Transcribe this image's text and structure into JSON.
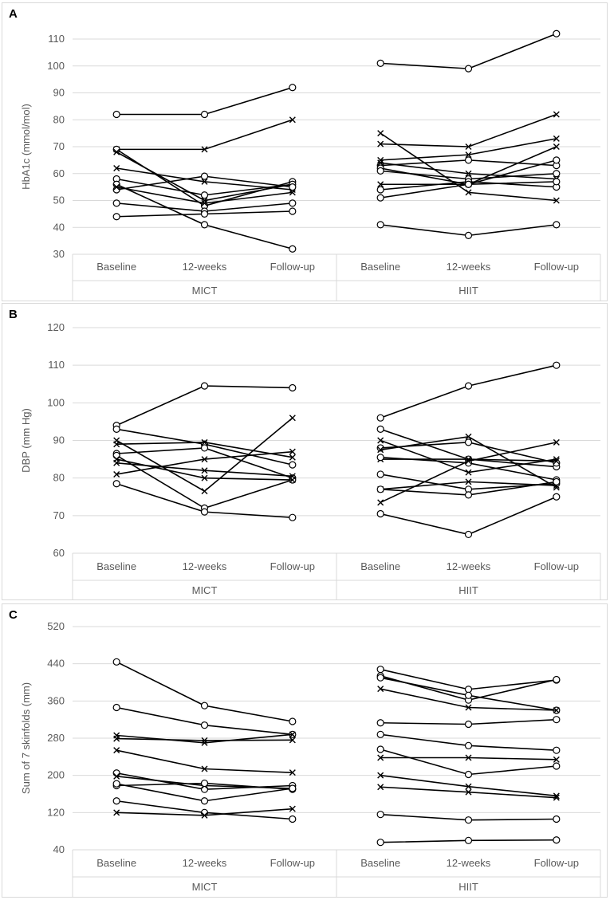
{
  "chart_data": [
    {
      "type": "line",
      "panel_label": "A",
      "ylabel": "HbA1c (mmol/mol)",
      "ylim": [
        30,
        110
      ],
      "yticks": [
        30,
        40,
        50,
        60,
        70,
        80,
        90,
        100,
        110
      ],
      "tick_labels": [
        "30",
        "40",
        "50",
        "60",
        "70",
        "80",
        "90",
        "100",
        "110"
      ],
      "categories": [
        "Baseline",
        "12-weeks",
        "Follow-up"
      ],
      "groups": [
        {
          "name": "MICT",
          "series": [
            {
              "marker": "o",
              "values": [
                82,
                82,
                92
              ]
            },
            {
              "marker": "x",
              "values": [
                69,
                69,
                80
              ]
            },
            {
              "marker": "o",
              "values": [
                69,
                48,
                57
              ]
            },
            {
              "marker": "x",
              "values": [
                68,
                50,
                56
              ]
            },
            {
              "marker": "x",
              "values": [
                62,
                57,
                54
              ]
            },
            {
              "marker": "o",
              "values": [
                58,
                52,
                56
              ]
            },
            {
              "marker": "o",
              "values": [
                56,
                41,
                32
              ]
            },
            {
              "marker": "o",
              "values": [
                54,
                59,
                55
              ]
            },
            {
              "marker": "x",
              "values": [
                55,
                49,
                53
              ]
            },
            {
              "marker": "o",
              "values": [
                49,
                46,
                49
              ]
            },
            {
              "marker": "o",
              "values": [
                44,
                45,
                46
              ]
            }
          ]
        },
        {
          "name": "HIIT",
          "series": [
            {
              "marker": "o",
              "values": [
                101,
                99,
                112
              ]
            },
            {
              "marker": "x",
              "values": [
                75,
                53,
                50
              ]
            },
            {
              "marker": "x",
              "values": [
                71,
                70,
                82
              ]
            },
            {
              "marker": "x",
              "values": [
                65,
                67,
                73
              ]
            },
            {
              "marker": "o",
              "values": [
                63,
                65,
                63
              ]
            },
            {
              "marker": "o",
              "values": [
                62,
                56,
                65
              ]
            },
            {
              "marker": "o",
              "values": [
                61,
                58,
                60
              ]
            },
            {
              "marker": "x",
              "values": [
                64,
                60,
                58
              ]
            },
            {
              "marker": "o",
              "values": [
                54,
                57,
                55
              ]
            },
            {
              "marker": "x",
              "values": [
                56,
                56,
                70
              ]
            },
            {
              "marker": "o",
              "values": [
                51,
                56,
                57
              ]
            },
            {
              "marker": "o",
              "values": [
                41,
                37,
                41
              ]
            }
          ]
        }
      ]
    },
    {
      "type": "line",
      "panel_label": "B",
      "ylabel": "DBP (mm Hg)",
      "ylim": [
        60,
        120
      ],
      "yticks": [
        60,
        70,
        80,
        90,
        100,
        110,
        120
      ],
      "tick_labels": [
        "60",
        "70",
        "80",
        "90",
        "100",
        "110",
        "120"
      ],
      "categories": [
        "Baseline",
        "12-weeks",
        "Follow-up"
      ],
      "groups": [
        {
          "name": "MICT",
          "series": [
            {
              "marker": "o",
              "values": [
                94,
                104.5,
                104
              ]
            },
            {
              "marker": "o",
              "values": [
                93,
                89,
                83.5
              ]
            },
            {
              "marker": "x",
              "values": [
                90,
                76.5,
                96
              ]
            },
            {
              "marker": "x",
              "values": [
                89,
                89.5,
                85.5
              ]
            },
            {
              "marker": "o",
              "values": [
                86.5,
                88,
                80
              ]
            },
            {
              "marker": "o",
              "values": [
                86,
                72,
                79.5
              ]
            },
            {
              "marker": "x",
              "values": [
                85,
                80,
                79.5
              ]
            },
            {
              "marker": "x",
              "values": [
                84,
                82,
                80.5
              ]
            },
            {
              "marker": "x",
              "values": [
                81,
                85,
                87
              ]
            },
            {
              "marker": "o",
              "values": [
                78.5,
                71,
                69.5
              ]
            }
          ]
        },
        {
          "name": "HIIT",
          "series": [
            {
              "marker": "o",
              "values": [
                96,
                104.5,
                110
              ]
            },
            {
              "marker": "o",
              "values": [
                93,
                85,
                83
              ]
            },
            {
              "marker": "x",
              "values": [
                90,
                81.5,
                85
              ]
            },
            {
              "marker": "o",
              "values": [
                88,
                89.5,
                84
              ]
            },
            {
              "marker": "x",
              "values": [
                87.5,
                91,
                77.5
              ]
            },
            {
              "marker": "x",
              "values": [
                85,
                85,
                84.5
              ]
            },
            {
              "marker": "o",
              "values": [
                85.5,
                84,
                79.5
              ]
            },
            {
              "marker": "o",
              "values": [
                81,
                77,
                78.5
              ]
            },
            {
              "marker": "x",
              "values": [
                77,
                79,
                78
              ]
            },
            {
              "marker": "o",
              "values": [
                77,
                75.5,
                79
              ]
            },
            {
              "marker": "x",
              "values": [
                73.5,
                84.5,
                89.5
              ]
            },
            {
              "marker": "o",
              "values": [
                70.5,
                65,
                75
              ]
            }
          ]
        }
      ]
    },
    {
      "type": "line",
      "panel_label": "C",
      "ylabel": "Sum of 7 skinfolds (mm)",
      "ylim": [
        40,
        520
      ],
      "yticks": [
        40,
        120,
        200,
        280,
        360,
        440,
        520
      ],
      "tick_labels": [
        "40",
        "120",
        "200",
        "280",
        "360",
        "440",
        "520"
      ],
      "categories": [
        "Baseline",
        "12-weeks",
        "Follow-up"
      ],
      "groups": [
        {
          "name": "MICT",
          "series": [
            {
              "marker": "o",
              "values": [
                444,
                350,
                316
              ]
            },
            {
              "marker": "o",
              "values": [
                346,
                308,
                288
              ]
            },
            {
              "marker": "x",
              "values": [
                286,
                270,
                288
              ]
            },
            {
              "marker": "x",
              "values": [
                279,
                275,
                276
              ]
            },
            {
              "marker": "x",
              "values": [
                254,
                214,
                206
              ]
            },
            {
              "marker": "o",
              "values": [
                205,
                170,
                178
              ]
            },
            {
              "marker": "x",
              "values": [
                198,
                178,
                172
              ]
            },
            {
              "marker": "o",
              "values": [
                178,
                183,
                170
              ]
            },
            {
              "marker": "o",
              "values": [
                182,
                145,
                172
              ]
            },
            {
              "marker": "o",
              "values": [
                145,
                120,
                106
              ]
            },
            {
              "marker": "x",
              "values": [
                120,
                114,
                128
              ]
            }
          ]
        },
        {
          "name": "HIIT",
          "series": [
            {
              "marker": "o",
              "values": [
                428,
                385,
                405
              ]
            },
            {
              "marker": "o",
              "values": [
                414,
                362,
                406
              ]
            },
            {
              "marker": "o",
              "values": [
                410,
                372,
                340
              ]
            },
            {
              "marker": "x",
              "values": [
                386,
                346,
                340
              ]
            },
            {
              "marker": "o",
              "values": [
                313,
                310,
                320
              ]
            },
            {
              "marker": "o",
              "values": [
                288,
                264,
                254
              ]
            },
            {
              "marker": "o",
              "values": [
                256,
                202,
                220
              ]
            },
            {
              "marker": "x",
              "values": [
                238,
                238,
                234
              ]
            },
            {
              "marker": "x",
              "values": [
                200,
                176,
                156
              ]
            },
            {
              "marker": "x",
              "values": [
                175,
                164,
                152
              ]
            },
            {
              "marker": "o",
              "values": [
                116,
                104,
                106
              ]
            },
            {
              "marker": "o",
              "values": [
                56,
                60,
                61
              ]
            }
          ]
        }
      ]
    }
  ]
}
